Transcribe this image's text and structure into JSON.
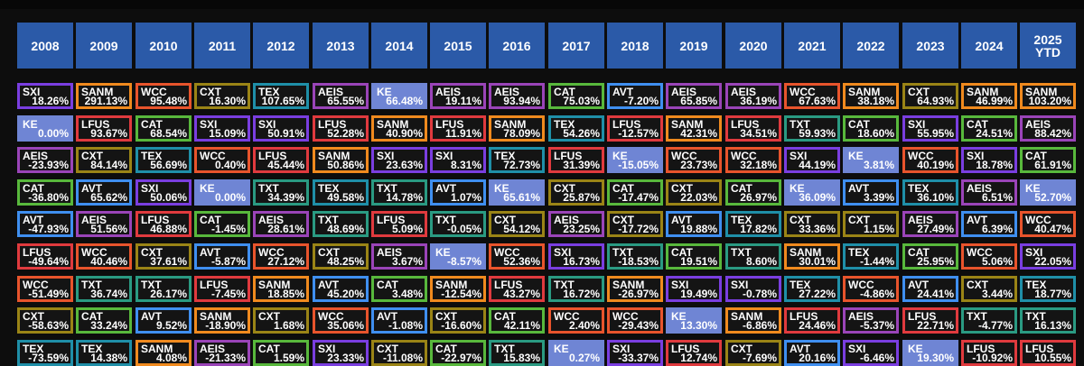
{
  "years": [
    "2008",
    "2009",
    "2010",
    "2011",
    "2012",
    "2013",
    "2014",
    "2015",
    "2016",
    "2017",
    "2018",
    "2019",
    "2020",
    "2021",
    "2022",
    "2023",
    "2024",
    "2025\nYTD"
  ],
  "ticker_colors": {
    "SXI": "#7a3ee0",
    "SANM": "#f08a1e",
    "WCC": "#e8542c",
    "CXT": "#9a8416",
    "TEX": "#1f8fa8",
    "AEIS": "#9a44b8",
    "KE": "#6f85d4",
    "CAT": "#58b83c",
    "AVT": "#3f8ff0",
    "LFUS": "#e03a3e",
    "TXT": "#2a9a82"
  },
  "columns": [
    [
      [
        "SXI",
        "18.26%"
      ],
      [
        "KE",
        "0.00%"
      ],
      [
        "AEIS",
        "-23.93%"
      ],
      [
        "CAT",
        "-36.80%"
      ],
      [
        "AVT",
        "-47.93%"
      ],
      [
        "LFUS",
        "-49.64%"
      ],
      [
        "WCC",
        "-51.49%"
      ],
      [
        "CXT",
        "-58.63%"
      ],
      [
        "TEX",
        "-73.59%"
      ]
    ],
    [
      [
        "SANM",
        "291.13%"
      ],
      [
        "LFUS",
        "93.67%"
      ],
      [
        "CXT",
        "84.14%"
      ],
      [
        "AVT",
        "65.62%"
      ],
      [
        "AEIS",
        "51.56%"
      ],
      [
        "WCC",
        "40.46%"
      ],
      [
        "TXT",
        "36.74%"
      ],
      [
        "CAT",
        "33.24%"
      ],
      [
        "TEX",
        "14.38%"
      ]
    ],
    [
      [
        "WCC",
        "95.48%"
      ],
      [
        "CAT",
        "68.54%"
      ],
      [
        "TEX",
        "56.69%"
      ],
      [
        "SXI",
        "50.06%"
      ],
      [
        "LFUS",
        "46.88%"
      ],
      [
        "CXT",
        "37.61%"
      ],
      [
        "TXT",
        "26.17%"
      ],
      [
        "AVT",
        "9.52%"
      ],
      [
        "SANM",
        "4.08%"
      ]
    ],
    [
      [
        "CXT",
        "16.30%"
      ],
      [
        "SXI",
        "15.09%"
      ],
      [
        "WCC",
        "0.40%"
      ],
      [
        "KE",
        "0.00%"
      ],
      [
        "CAT",
        "-1.45%"
      ],
      [
        "AVT",
        "-5.87%"
      ],
      [
        "LFUS",
        "-7.45%"
      ],
      [
        "SANM",
        "-18.90%"
      ],
      [
        "AEIS",
        "-21.33%"
      ]
    ],
    [
      [
        "TEX",
        "107.65%"
      ],
      [
        "SXI",
        "50.91%"
      ],
      [
        "LFUS",
        "45.44%"
      ],
      [
        "TXT",
        "34.39%"
      ],
      [
        "AEIS",
        "28.61%"
      ],
      [
        "WCC",
        "27.12%"
      ],
      [
        "SANM",
        "18.85%"
      ],
      [
        "CXT",
        "1.68%"
      ],
      [
        "CAT",
        "1.59%"
      ]
    ],
    [
      [
        "AEIS",
        "65.55%"
      ],
      [
        "LFUS",
        "52.28%"
      ],
      [
        "SANM",
        "50.86%"
      ],
      [
        "TEX",
        "49.58%"
      ],
      [
        "TXT",
        "48.69%"
      ],
      [
        "CXT",
        "48.25%"
      ],
      [
        "AVT",
        "45.20%"
      ],
      [
        "WCC",
        "35.06%"
      ],
      [
        "SXI",
        "23.33%"
      ]
    ],
    [
      [
        "KE",
        "66.48%"
      ],
      [
        "SANM",
        "40.90%"
      ],
      [
        "SXI",
        "23.63%"
      ],
      [
        "TXT",
        "14.78%"
      ],
      [
        "LFUS",
        "5.09%"
      ],
      [
        "AEIS",
        "3.67%"
      ],
      [
        "CAT",
        "3.48%"
      ],
      [
        "AVT",
        "-1.08%"
      ],
      [
        "CXT",
        "-11.08%"
      ]
    ],
    [
      [
        "AEIS",
        "19.11%"
      ],
      [
        "LFUS",
        "11.91%"
      ],
      [
        "SXI",
        "8.31%"
      ],
      [
        "AVT",
        "1.07%"
      ],
      [
        "TXT",
        "-0.05%"
      ],
      [
        "KE",
        "-8.57%"
      ],
      [
        "SANM",
        "-12.54%"
      ],
      [
        "CXT",
        "-16.60%"
      ],
      [
        "CAT",
        "-22.97%"
      ]
    ],
    [
      [
        "AEIS",
        "93.94%"
      ],
      [
        "SANM",
        "78.09%"
      ],
      [
        "TEX",
        "72.73%"
      ],
      [
        "KE",
        "65.61%"
      ],
      [
        "CXT",
        "54.12%"
      ],
      [
        "WCC",
        "52.36%"
      ],
      [
        "LFUS",
        "43.27%"
      ],
      [
        "CAT",
        "42.11%"
      ],
      [
        "TXT",
        "15.83%"
      ]
    ],
    [
      [
        "CAT",
        "75.03%"
      ],
      [
        "TEX",
        "54.26%"
      ],
      [
        "LFUS",
        "31.39%"
      ],
      [
        "CXT",
        "25.87%"
      ],
      [
        "AEIS",
        "23.25%"
      ],
      [
        "SXI",
        "16.73%"
      ],
      [
        "TXT",
        "16.72%"
      ],
      [
        "WCC",
        "2.40%"
      ],
      [
        "KE",
        "0.27%"
      ]
    ],
    [
      [
        "AVT",
        "-7.20%"
      ],
      [
        "LFUS",
        "-12.57%"
      ],
      [
        "KE",
        "-15.05%"
      ],
      [
        "CAT",
        "-17.47%"
      ],
      [
        "CXT",
        "-17.72%"
      ],
      [
        "TXT",
        "-18.53%"
      ],
      [
        "SANM",
        "-26.97%"
      ],
      [
        "WCC",
        "-29.43%"
      ],
      [
        "SXI",
        "-33.37%"
      ]
    ],
    [
      [
        "AEIS",
        "65.85%"
      ],
      [
        "SANM",
        "42.31%"
      ],
      [
        "WCC",
        "23.73%"
      ],
      [
        "CXT",
        "22.03%"
      ],
      [
        "AVT",
        "19.88%"
      ],
      [
        "CAT",
        "19.51%"
      ],
      [
        "SXI",
        "19.49%"
      ],
      [
        "KE",
        "13.30%"
      ],
      [
        "LFUS",
        "12.74%"
      ]
    ],
    [
      [
        "AEIS",
        "36.19%"
      ],
      [
        "LFUS",
        "34.51%"
      ],
      [
        "WCC",
        "32.18%"
      ],
      [
        "CAT",
        "26.97%"
      ],
      [
        "TEX",
        "17.82%"
      ],
      [
        "TXT",
        "8.60%"
      ],
      [
        "SXI",
        "-0.78%"
      ],
      [
        "SANM",
        "-6.86%"
      ],
      [
        "CXT",
        "-7.69%"
      ]
    ],
    [
      [
        "WCC",
        "67.63%"
      ],
      [
        "TXT",
        "59.93%"
      ],
      [
        "SXI",
        "44.19%"
      ],
      [
        "KE",
        "36.09%"
      ],
      [
        "CXT",
        "33.36%"
      ],
      [
        "SANM",
        "30.01%"
      ],
      [
        "TEX",
        "27.22%"
      ],
      [
        "LFUS",
        "24.46%"
      ],
      [
        "AVT",
        "20.16%"
      ]
    ],
    [
      [
        "SANM",
        "38.18%"
      ],
      [
        "CAT",
        "18.60%"
      ],
      [
        "KE",
        "3.81%"
      ],
      [
        "AVT",
        "3.39%"
      ],
      [
        "CXT",
        "1.15%"
      ],
      [
        "TEX",
        "-1.44%"
      ],
      [
        "WCC",
        "-4.86%"
      ],
      [
        "AEIS",
        "-5.37%"
      ],
      [
        "SXI",
        "-6.46%"
      ]
    ],
    [
      [
        "CXT",
        "64.93%"
      ],
      [
        "SXI",
        "55.95%"
      ],
      [
        "WCC",
        "40.19%"
      ],
      [
        "TEX",
        "36.10%"
      ],
      [
        "AEIS",
        "27.49%"
      ],
      [
        "CAT",
        "25.95%"
      ],
      [
        "AVT",
        "24.41%"
      ],
      [
        "LFUS",
        "22.71%"
      ],
      [
        "KE",
        "19.30%"
      ]
    ],
    [
      [
        "SANM",
        "46.99%"
      ],
      [
        "CAT",
        "24.51%"
      ],
      [
        "SXI",
        "18.78%"
      ],
      [
        "AEIS",
        "6.51%"
      ],
      [
        "AVT",
        "6.39%"
      ],
      [
        "WCC",
        "5.06%"
      ],
      [
        "CXT",
        "3.44%"
      ],
      [
        "TXT",
        "-4.77%"
      ],
      [
        "LFUS",
        "-10.92%"
      ]
    ],
    [
      [
        "SANM",
        "103.20%"
      ],
      [
        "AEIS",
        "88.42%"
      ],
      [
        "CAT",
        "61.91%"
      ],
      [
        "KE",
        "52.70%"
      ],
      [
        "WCC",
        "40.47%"
      ],
      [
        "SXI",
        "22.05%"
      ],
      [
        "TEX",
        "18.77%"
      ],
      [
        "TXT",
        "16.13%"
      ],
      [
        "LFUS",
        "10.55%"
      ]
    ]
  ]
}
